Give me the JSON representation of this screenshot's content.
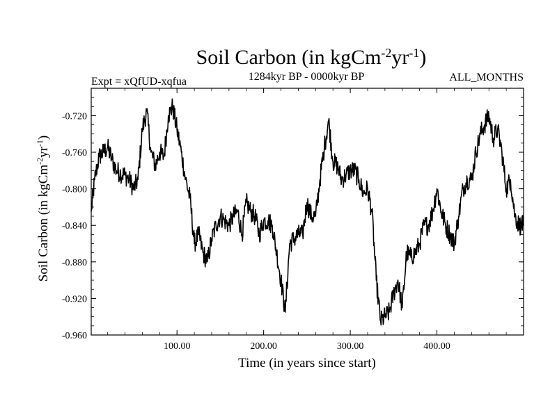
{
  "chart_data": {
    "type": "line",
    "title": "Soil Carbon (in kgCm",
    "title_sup1": "-2",
    "title_mid": "yr",
    "title_sup2": "-1",
    "title_end": ")",
    "left_note": "Expt = xQfUD-xqfua",
    "center_note": "1284kyr BP - 0000kyr BP",
    "right_note": "ALL_MONTHS",
    "xlabel": "Time (in years since start)",
    "ylabel": "Soil Carbon (in kgCm",
    "ylabel_sup1": "-2",
    "ylabel_mid": "yr",
    "ylabel_sup2": "-1",
    "ylabel_end": ")",
    "xlim": [
      1,
      500
    ],
    "ylim": [
      -0.96,
      -0.69
    ],
    "xticks": [
      100,
      200,
      300,
      400
    ],
    "xtick_labels": [
      "100.00",
      "200.00",
      "300.00",
      "400.00"
    ],
    "yticks": [
      -0.96,
      -0.92,
      -0.88,
      -0.84,
      -0.8,
      -0.76,
      -0.72
    ],
    "ytick_labels": [
      "-0.960",
      "-0.920",
      "-0.880",
      "-0.840",
      "-0.800",
      "-0.760",
      "-0.720"
    ],
    "grid": false,
    "series": [
      {
        "x": [
          1,
          5,
          10,
          15,
          20,
          25,
          30,
          35,
          40,
          45,
          50,
          55,
          60,
          65,
          70,
          75,
          80,
          85,
          90,
          95,
          100,
          105,
          110,
          115,
          120,
          125,
          130,
          135,
          140,
          145,
          150,
          155,
          160,
          165,
          170,
          175,
          180,
          185,
          190,
          195,
          200,
          205,
          210,
          215,
          220,
          225,
          230,
          235,
          240,
          245,
          250,
          255,
          260,
          265,
          270,
          275,
          280,
          285,
          290,
          295,
          300,
          305,
          310,
          315,
          320,
          325,
          330,
          335,
          340,
          345,
          350,
          355,
          360,
          365,
          370,
          375,
          380,
          385,
          390,
          395,
          400,
          405,
          410,
          415,
          420,
          425,
          430,
          435,
          440,
          445,
          450,
          455,
          460,
          465,
          470,
          475,
          480,
          485,
          490,
          495,
          500
        ],
        "y": [
          -0.825,
          -0.79,
          -0.765,
          -0.76,
          -0.755,
          -0.768,
          -0.78,
          -0.783,
          -0.785,
          -0.79,
          -0.8,
          -0.79,
          -0.735,
          -0.715,
          -0.76,
          -0.775,
          -0.76,
          -0.765,
          -0.72,
          -0.71,
          -0.735,
          -0.76,
          -0.79,
          -0.81,
          -0.86,
          -0.85,
          -0.87,
          -0.88,
          -0.855,
          -0.84,
          -0.83,
          -0.835,
          -0.84,
          -0.83,
          -0.825,
          -0.85,
          -0.815,
          -0.825,
          -0.83,
          -0.85,
          -0.835,
          -0.835,
          -0.84,
          -0.87,
          -0.9,
          -0.935,
          -0.86,
          -0.855,
          -0.85,
          -0.85,
          -0.815,
          -0.83,
          -0.83,
          -0.79,
          -0.755,
          -0.725,
          -0.77,
          -0.775,
          -0.79,
          -0.785,
          -0.78,
          -0.78,
          -0.79,
          -0.805,
          -0.8,
          -0.825,
          -0.9,
          -0.945,
          -0.94,
          -0.935,
          -0.915,
          -0.9,
          -0.93,
          -0.87,
          -0.875,
          -0.87,
          -0.86,
          -0.84,
          -0.84,
          -0.825,
          -0.8,
          -0.825,
          -0.84,
          -0.85,
          -0.86,
          -0.83,
          -0.8,
          -0.79,
          -0.79,
          -0.76,
          -0.74,
          -0.73,
          -0.72,
          -0.745,
          -0.735,
          -0.76,
          -0.8,
          -0.79,
          -0.83,
          -0.84,
          -0.84
        ]
      }
    ]
  }
}
